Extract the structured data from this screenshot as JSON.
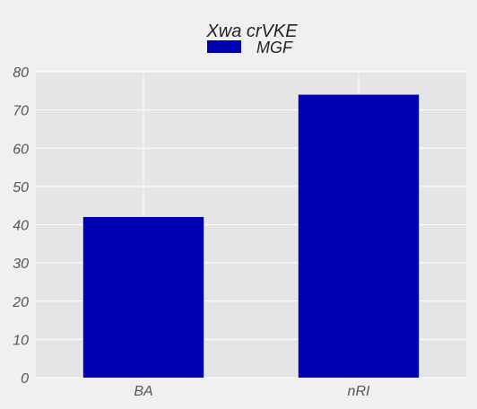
{
  "colors": {
    "background": "#f0f0f0",
    "plot_background": "#e5e5e5",
    "grid": "#ffffff",
    "bar": "#0000b3"
  },
  "chart_data": {
    "type": "bar",
    "title": "Xwa crVKE",
    "categories": [
      "BA",
      "nRI"
    ],
    "series": [
      {
        "name": "MGF",
        "values": [
          42,
          74
        ]
      }
    ],
    "xlabel": "",
    "ylabel": "",
    "ylim": [
      0,
      80
    ],
    "yticks": [
      "0",
      "10",
      "20",
      "30",
      "40",
      "50",
      "60",
      "70",
      "80"
    ],
    "grid": true,
    "legend": "top-center"
  }
}
